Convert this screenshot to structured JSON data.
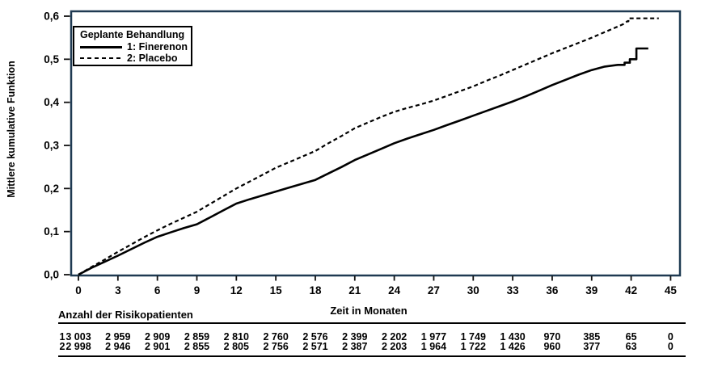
{
  "chart_data": {
    "type": "line",
    "title": "",
    "xlabel": "Zeit in Monaten",
    "ylabel": "Mittlere kumulative Funktion",
    "xlim": [
      0,
      45
    ],
    "ylim": [
      0,
      0.6
    ],
    "grid": false,
    "x_ticks": [
      0,
      3,
      6,
      9,
      12,
      15,
      18,
      21,
      24,
      27,
      30,
      33,
      36,
      39,
      42,
      45
    ],
    "y_ticks": [
      {
        "value": 0.0,
        "label": "0,0"
      },
      {
        "value": 0.1,
        "label": "0,1"
      },
      {
        "value": 0.2,
        "label": "0,2"
      },
      {
        "value": 0.3,
        "label": "0,3"
      },
      {
        "value": 0.4,
        "label": "0,4"
      },
      {
        "value": 0.5,
        "label": "0,5"
      },
      {
        "value": 0.6,
        "label": "0,6"
      }
    ],
    "legend": {
      "title": "Geplante Behandlung",
      "position": "top-left",
      "entries": [
        {
          "label": "1: Finerenon",
          "style": "solid"
        },
        {
          "label": "2: Placebo",
          "style": "dashed"
        }
      ]
    },
    "series": [
      {
        "name": "1: Finerenon",
        "line": "solid",
        "color": "#000000",
        "points": [
          [
            0,
            0
          ],
          [
            1,
            0.016
          ],
          [
            2,
            0.03
          ],
          [
            3,
            0.044
          ],
          [
            4,
            0.059
          ],
          [
            5,
            0.074
          ],
          [
            6,
            0.088
          ],
          [
            7,
            0.098
          ],
          [
            8,
            0.108
          ],
          [
            9,
            0.117
          ],
          [
            10,
            0.133
          ],
          [
            11,
            0.149
          ],
          [
            12,
            0.165
          ],
          [
            13,
            0.175
          ],
          [
            14,
            0.184
          ],
          [
            15,
            0.193
          ],
          [
            16,
            0.202
          ],
          [
            17,
            0.211
          ],
          [
            18,
            0.22
          ],
          [
            19,
            0.235
          ],
          [
            20,
            0.25
          ],
          [
            21,
            0.266
          ],
          [
            22,
            0.279
          ],
          [
            23,
            0.292
          ],
          [
            24,
            0.305
          ],
          [
            25,
            0.316
          ],
          [
            26,
            0.326
          ],
          [
            27,
            0.336
          ],
          [
            28,
            0.347
          ],
          [
            29,
            0.358
          ],
          [
            30,
            0.369
          ],
          [
            31,
            0.38
          ],
          [
            32,
            0.391
          ],
          [
            33,
            0.402
          ],
          [
            34,
            0.414
          ],
          [
            35,
            0.427
          ],
          [
            36,
            0.44
          ],
          [
            37,
            0.452
          ],
          [
            38,
            0.464
          ],
          [
            39,
            0.475
          ],
          [
            40,
            0.483
          ],
          [
            41,
            0.487
          ],
          [
            41.5,
            0.487
          ],
          [
            41.5,
            0.492
          ],
          [
            41.9,
            0.492
          ],
          [
            41.9,
            0.5
          ],
          [
            42.4,
            0.5
          ],
          [
            42.4,
            0.525
          ],
          [
            43.3,
            0.525
          ]
        ]
      },
      {
        "name": "2: Placebo",
        "line": "dashed",
        "color": "#000000",
        "points": [
          [
            0,
            0
          ],
          [
            1,
            0.018
          ],
          [
            2,
            0.035
          ],
          [
            3,
            0.053
          ],
          [
            4,
            0.07
          ],
          [
            5,
            0.087
          ],
          [
            6,
            0.103
          ],
          [
            7,
            0.118
          ],
          [
            8,
            0.132
          ],
          [
            9,
            0.146
          ],
          [
            10,
            0.164
          ],
          [
            11,
            0.182
          ],
          [
            12,
            0.2
          ],
          [
            13,
            0.216
          ],
          [
            14,
            0.232
          ],
          [
            15,
            0.248
          ],
          [
            16,
            0.261
          ],
          [
            17,
            0.274
          ],
          [
            18,
            0.287
          ],
          [
            19,
            0.305
          ],
          [
            20,
            0.322
          ],
          [
            21,
            0.34
          ],
          [
            22,
            0.353
          ],
          [
            23,
            0.366
          ],
          [
            24,
            0.378
          ],
          [
            25,
            0.387
          ],
          [
            26,
            0.395
          ],
          [
            27,
            0.404
          ],
          [
            28,
            0.415
          ],
          [
            29,
            0.426
          ],
          [
            30,
            0.437
          ],
          [
            31,
            0.45
          ],
          [
            32,
            0.462
          ],
          [
            33,
            0.475
          ],
          [
            34,
            0.488
          ],
          [
            35,
            0.501
          ],
          [
            36,
            0.514
          ],
          [
            37,
            0.526
          ],
          [
            38,
            0.538
          ],
          [
            39,
            0.55
          ],
          [
            40,
            0.563
          ],
          [
            41,
            0.576
          ],
          [
            41.5,
            0.583
          ],
          [
            41.7,
            0.588
          ],
          [
            41.8,
            0.588
          ],
          [
            41.8,
            0.595
          ],
          [
            44.1,
            0.595
          ]
        ]
      }
    ]
  },
  "risk_table": {
    "title": "Anzahl der Risikopatienten",
    "columns": [
      0,
      3,
      6,
      9,
      12,
      15,
      18,
      21,
      24,
      27,
      30,
      33,
      36,
      39,
      42,
      45
    ],
    "rows": [
      {
        "label": "1",
        "values": [
          "3 003",
          "2 959",
          "2 909",
          "2 859",
          "2 810",
          "2 760",
          "2 576",
          "2 399",
          "2 202",
          "1 977",
          "1 749",
          "1 430",
          "970",
          "385",
          "65",
          "0"
        ]
      },
      {
        "label": "2",
        "values": [
          "2 998",
          "2 946",
          "2 901",
          "2 855",
          "2 805",
          "2 756",
          "2 571",
          "2 387",
          "2 203",
          "1 964",
          "1 722",
          "1 426",
          "960",
          "377",
          "63",
          "0"
        ]
      }
    ]
  },
  "colors": {
    "frame": "#1f3a52",
    "tick": "#111111",
    "curve": "#000000",
    "text": "#000000",
    "background": "#ffffff"
  }
}
